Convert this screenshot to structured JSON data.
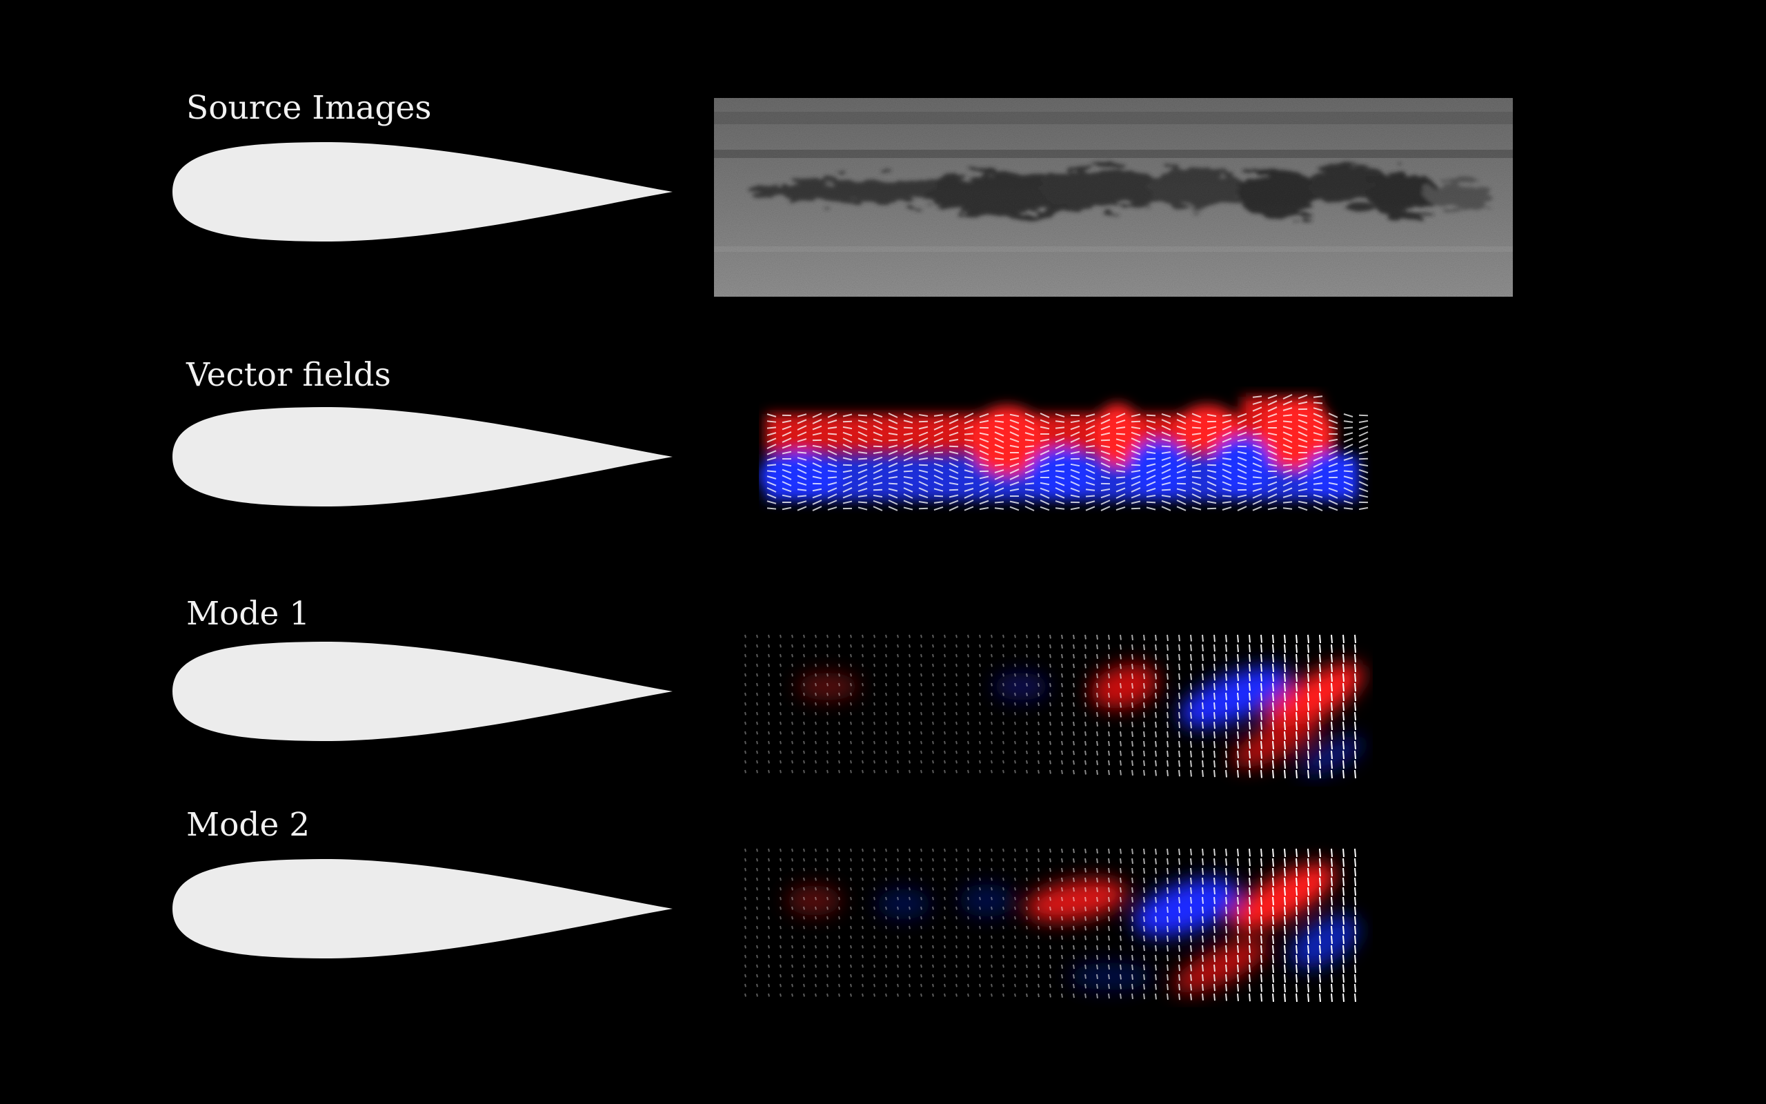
{
  "rows": [
    {
      "id": "source",
      "label": "Source Images"
    },
    {
      "id": "vector",
      "label": "Vector fields"
    },
    {
      "id": "mode1",
      "label": "Mode 1"
    },
    {
      "id": "mode2",
      "label": "Mode 2"
    }
  ],
  "colors": {
    "background": "#000000",
    "airfoil": "#ececec",
    "positive": "#ff1e1e",
    "negative": "#1e2cff",
    "vector": "#ffffff",
    "source_gray": "#8a8a8a"
  }
}
